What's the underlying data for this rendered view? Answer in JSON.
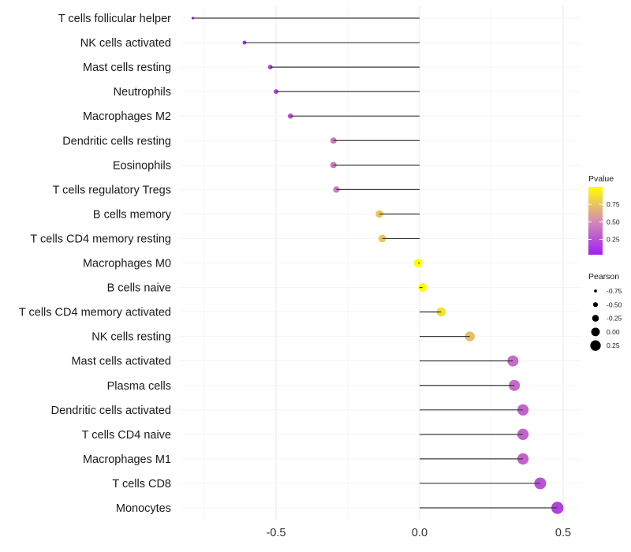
{
  "chart_data": {
    "type": "lollipop",
    "title": "",
    "xlabel": "",
    "ylabel": "",
    "xlim": [
      -0.8,
      0.52
    ],
    "xticks": [
      -0.5,
      0.0,
      0.5
    ],
    "xtick_labels": [
      "-0.5",
      "0.0",
      "0.5"
    ],
    "grid": true,
    "categories": [
      "T cells follicular helper",
      "NK cells activated",
      "Mast cells resting",
      "Neutrophils",
      "Macrophages M2",
      "Dendritic cells resting",
      "Eosinophils",
      "T cells regulatory  Tregs",
      "B cells memory",
      "T cells CD4 memory resting",
      "Macrophages M0",
      "B cells naive",
      "T cells CD4 memory activated",
      "NK cells resting",
      "Mast cells activated",
      "Plasma cells",
      "Dendritic cells activated",
      "T cells CD4 naive",
      "Macrophages M1",
      "T cells CD8",
      "Monocytes"
    ],
    "pearson": [
      -0.79,
      -0.61,
      -0.52,
      -0.5,
      -0.45,
      -0.3,
      -0.3,
      -0.29,
      -0.14,
      -0.13,
      -0.005,
      0.01,
      0.075,
      0.175,
      0.325,
      0.33,
      0.36,
      0.36,
      0.36,
      0.42,
      0.48
    ],
    "pvalue": [
      0.03,
      0.12,
      0.16,
      0.18,
      0.22,
      0.42,
      0.42,
      0.43,
      0.75,
      0.76,
      1.0,
      0.98,
      0.88,
      0.72,
      0.36,
      0.35,
      0.32,
      0.32,
      0.32,
      0.25,
      0.18
    ],
    "legend": {
      "placement": "right",
      "color": {
        "title": "Pvalue",
        "ticks": [
          0.25,
          0.5,
          0.75
        ],
        "tick_labels": [
          "0.25",
          "0.50",
          "0.75"
        ],
        "low_color": "#a020f0",
        "mid_color": "#d58cb4",
        "high_color": "#ffff00"
      },
      "size": {
        "title": "Pearson",
        "values": [
          -0.75,
          -0.5,
          -0.25,
          0.0,
          0.25
        ],
        "labels": [
          "-0.75",
          "-0.50",
          "-0.25",
          "0.00",
          "0.25"
        ]
      }
    }
  }
}
